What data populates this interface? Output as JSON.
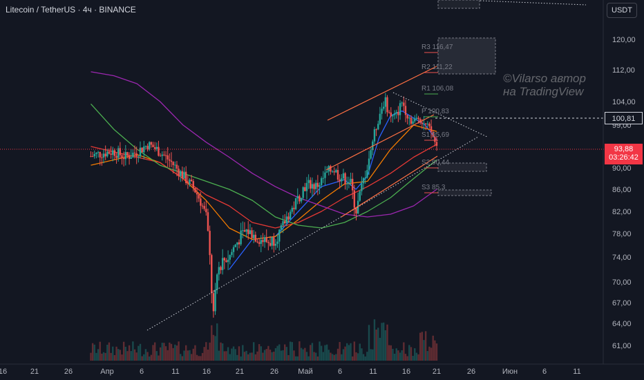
{
  "header": {
    "title": "Litecoin / TetherUS · 4ч · BINANCE"
  },
  "currency_button": "USDT",
  "watermark": {
    "line1": "©Vilarso автор",
    "line2": "на TradingView"
  },
  "price_labels": {
    "last_value": "100,81",
    "current_price": "93,88",
    "countdown": "03:26:42"
  },
  "pivot_labels": {
    "r3": "R3 116,47",
    "r2": "R2 111,22",
    "r1": "R1 106,08",
    "p": "P 100,83",
    "s1": "S1 95,69",
    "s2": "S2 90,44",
    "s3": "S3 85,3"
  },
  "colors": {
    "background": "#131722",
    "up": "#26a69a",
    "down": "#ef5350",
    "ma_blue": "#2962ff",
    "ma_orange": "#f57c00",
    "ma_red": "#e53935",
    "ma_green": "#4caf50",
    "ma_purple": "#9c27b0",
    "channel": "#ff7043"
  },
  "chart_data": {
    "type": "candlestick",
    "title": "Litecoin / TetherUS · 4ч · BINANCE",
    "y_axis": {
      "ticks": [
        "120,00",
        "112,00",
        "104,00",
        "99,00",
        "94,00",
        "90,00",
        "86,00",
        "82,00",
        "78,00",
        "74,00",
        "70,00",
        "67,00",
        "64,00",
        "61,00"
      ],
      "values": [
        120,
        112,
        104,
        99,
        94,
        90,
        86,
        82,
        78,
        74,
        70,
        67,
        64,
        61
      ]
    },
    "x_axis": {
      "ticks": [
        "16",
        "21",
        "26",
        "Апр",
        "6",
        "11",
        "16",
        "21",
        "26",
        "Май",
        "6",
        "11",
        "16",
        "21",
        "26",
        "Июн",
        "6",
        "11"
      ]
    },
    "price_path": [
      [
        16,
        92.2
      ],
      [
        18,
        92.8
      ],
      [
        20,
        93.1
      ],
      [
        22,
        92.0
      ],
      [
        24,
        93.0
      ],
      [
        26,
        94.5
      ],
      [
        28,
        93.0
      ],
      [
        30,
        91.0
      ],
      [
        32,
        88.5
      ],
      [
        34,
        86.0
      ],
      [
        35,
        84.0
      ],
      [
        36,
        81.0
      ],
      [
        36.5,
        76.0
      ],
      [
        37,
        68.0
      ],
      [
        37.3,
        65.0
      ],
      [
        38,
        72.0
      ],
      [
        39,
        73.5
      ],
      [
        40,
        74.0
      ],
      [
        41,
        76.0
      ],
      [
        42,
        77.5
      ],
      [
        43,
        78.5
      ],
      [
        44,
        78.0
      ],
      [
        45,
        77.2
      ],
      [
        46,
        76.8
      ],
      [
        47,
        76.5
      ],
      [
        48,
        77.2
      ],
      [
        49,
        78.5
      ],
      [
        50,
        81.0
      ],
      [
        51,
        82.5
      ],
      [
        52,
        84.5
      ],
      [
        53,
        86.5
      ],
      [
        54,
        87.0
      ],
      [
        55,
        86.5
      ],
      [
        56,
        87.5
      ],
      [
        57,
        89.0
      ],
      [
        58,
        90.0
      ],
      [
        59,
        88.5
      ],
      [
        60,
        88.0
      ],
      [
        61,
        87.5
      ],
      [
        62,
        82.0
      ],
      [
        63,
        86.5
      ],
      [
        64,
        90.5
      ],
      [
        65,
        96.0
      ],
      [
        66,
        101.0
      ],
      [
        67,
        104.5
      ],
      [
        68,
        100.5
      ],
      [
        69,
        101.0
      ],
      [
        70,
        104.0
      ],
      [
        71,
        101.0
      ],
      [
        72,
        99.5
      ],
      [
        73,
        100.8
      ],
      [
        74,
        99.0
      ],
      [
        75,
        97.5
      ],
      [
        76,
        93.88
      ]
    ],
    "moving_averages": [
      {
        "color": "#2962ff",
        "values": [
          [
            40,
            72.0
          ],
          [
            44,
            77.0
          ],
          [
            48,
            77.5
          ],
          [
            52,
            82.0
          ],
          [
            56,
            86.5
          ],
          [
            60,
            87.8
          ],
          [
            62,
            86.0
          ],
          [
            64,
            88.5
          ],
          [
            66,
            96.0
          ],
          [
            68,
            101.0
          ],
          [
            70,
            102.0
          ],
          [
            72,
            100.5
          ],
          [
            74,
            99.0
          ],
          [
            76,
            95.5
          ]
        ]
      },
      {
        "color": "#f57c00",
        "values": [
          [
            16,
            90.5
          ],
          [
            20,
            91.5
          ],
          [
            24,
            92.5
          ],
          [
            28,
            91.0
          ],
          [
            32,
            88.0
          ],
          [
            36,
            84.0
          ],
          [
            40,
            79.0
          ],
          [
            44,
            77.0
          ],
          [
            48,
            77.5
          ],
          [
            52,
            80.5
          ],
          [
            56,
            84.0
          ],
          [
            60,
            87.0
          ],
          [
            64,
            87.5
          ],
          [
            68,
            93.5
          ],
          [
            72,
            99.0
          ],
          [
            76,
            97.5
          ]
        ]
      },
      {
        "color": "#e53935",
        "values": [
          [
            16,
            94.0
          ],
          [
            20,
            93.0
          ],
          [
            24,
            92.0
          ],
          [
            28,
            91.0
          ],
          [
            32,
            88.0
          ],
          [
            36,
            85.0
          ],
          [
            40,
            83.0
          ],
          [
            44,
            80.0
          ],
          [
            48,
            79.0
          ],
          [
            52,
            80.0
          ],
          [
            56,
            82.0
          ],
          [
            60,
            84.5
          ],
          [
            64,
            86.5
          ],
          [
            68,
            89.0
          ],
          [
            72,
            92.0
          ],
          [
            76,
            94.5
          ]
        ]
      },
      {
        "color": "#4caf50",
        "values": [
          [
            16,
            103.5
          ],
          [
            20,
            98.0
          ],
          [
            24,
            93.5
          ],
          [
            28,
            90.5
          ],
          [
            32,
            89.0
          ],
          [
            36,
            87.5
          ],
          [
            40,
            86.0
          ],
          [
            44,
            84.0
          ],
          [
            48,
            81.0
          ],
          [
            52,
            79.5
          ],
          [
            56,
            79.0
          ],
          [
            60,
            80.0
          ],
          [
            64,
            82.0
          ],
          [
            68,
            84.5
          ],
          [
            72,
            88.0
          ],
          [
            76,
            91.5
          ]
        ]
      },
      {
        "color": "#9c27b0",
        "values": [
          [
            16,
            111.5
          ],
          [
            20,
            110.5
          ],
          [
            24,
            108.5
          ],
          [
            28,
            104.0
          ],
          [
            32,
            99.0
          ],
          [
            36,
            95.0
          ],
          [
            40,
            92.0
          ],
          [
            44,
            89.0
          ],
          [
            48,
            86.5
          ],
          [
            52,
            84.5
          ],
          [
            56,
            83.0
          ],
          [
            60,
            81.5
          ],
          [
            64,
            81.0
          ],
          [
            68,
            81.5
          ],
          [
            72,
            83.0
          ],
          [
            76,
            86.0
          ]
        ]
      }
    ]
  }
}
